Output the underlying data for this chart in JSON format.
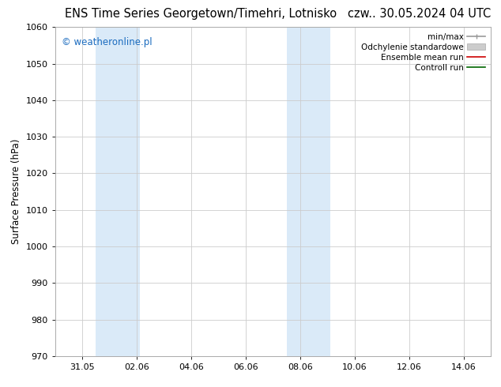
{
  "title": "ENS Time Series Georgetown/Timehri, Lotnisko",
  "title_right": "czw.. 30.05.2024 04 UTC",
  "ylabel": "Surface Pressure (hPa)",
  "ylim": [
    970,
    1060
  ],
  "yticks": [
    970,
    980,
    990,
    1000,
    1010,
    1020,
    1030,
    1040,
    1050,
    1060
  ],
  "xlim": [
    0,
    16
  ],
  "xtick_positions": [
    1,
    3,
    5,
    7,
    9,
    11,
    13,
    15
  ],
  "xtick_labels": [
    "31.05",
    "02.06",
    "04.06",
    "06.06",
    "08.06",
    "10.06",
    "12.06",
    "14.06"
  ],
  "watermark": "© weatheronline.pl",
  "watermark_color": "#1a6bbf",
  "bg_color": "#ffffff",
  "shaded_regions": [
    {
      "x_start": 1.5,
      "x_end": 3.1,
      "color": "#daeaf8"
    },
    {
      "x_start": 8.5,
      "x_end": 10.1,
      "color": "#daeaf8"
    }
  ],
  "legend_entries": [
    {
      "label": "min/max",
      "color": "#999999",
      "lw": 1.2
    },
    {
      "label": "Odchylenie standardowe",
      "color": "#cccccc",
      "lw": 5
    },
    {
      "label": "Ensemble mean run",
      "color": "#cc0000",
      "lw": 1.2
    },
    {
      "label": "Controll run",
      "color": "#006600",
      "lw": 1.2
    }
  ],
  "grid_color": "#cccccc",
  "title_fontsize": 10.5,
  "axis_label_fontsize": 8.5,
  "tick_fontsize": 8.0,
  "legend_fontsize": 7.5,
  "watermark_fontsize": 8.5
}
